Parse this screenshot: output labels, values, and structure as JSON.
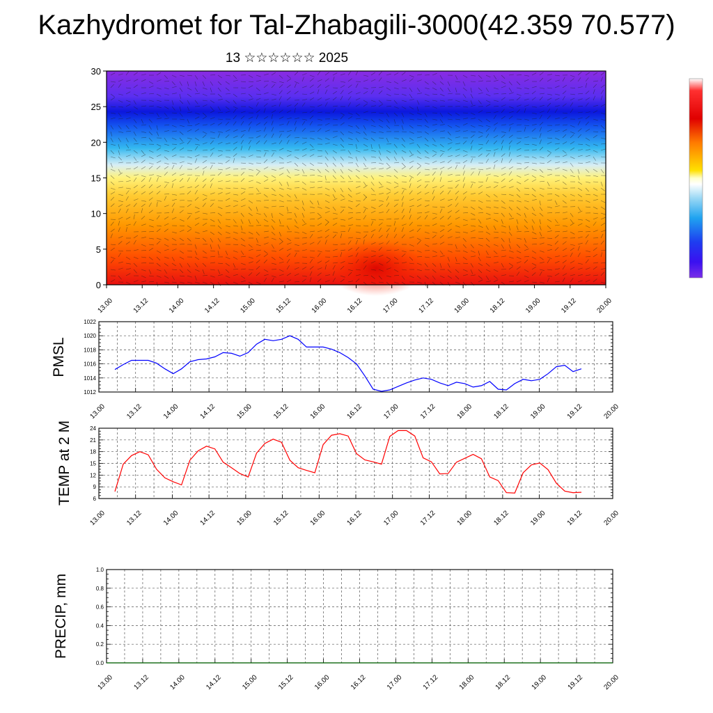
{
  "title": "Kazhydromet for Tal-Zhabagili-3000(42.359 70.577)",
  "subtitle": "13 ☆☆☆☆☆☆ 2025",
  "time_labels": [
    "13.00",
    "13.12",
    "14.00",
    "14.12",
    "15.00",
    "15.12",
    "16.00",
    "16.12",
    "17.00",
    "17.12",
    "18.00",
    "18.12",
    "19.00",
    "19.12",
    "20.00"
  ],
  "colors": {
    "pmsl_line": "#0000ff",
    "temp_line": "#ff0000",
    "precip_line": "#006400",
    "colorbar": [
      "#ffffff",
      "#ff0000",
      "#ff8c00",
      "#ffff00",
      "#ffffff",
      "#00bfff",
      "#0000ff",
      "#8a2be2"
    ]
  },
  "chart_data": [
    {
      "type": "heatmap",
      "title": "",
      "xlabel": "",
      "ylabel": "",
      "ylim": [
        0,
        30
      ],
      "yticks": [
        "0",
        "5",
        "10",
        "15",
        "20",
        "25",
        "30"
      ],
      "x": [
        "13.00",
        "13.12",
        "14.00",
        "14.12",
        "15.00",
        "15.12",
        "16.00",
        "16.12",
        "17.00",
        "17.12",
        "18.00",
        "18.12",
        "19.00",
        "19.12",
        "20.00"
      ],
      "color_scale": "warm at low levels (red/orange), yellow around 15, cyan-blue around 20-25, violet above",
      "overlay": "wind barbs",
      "colorbar": "right side, vertical"
    },
    {
      "type": "line",
      "name": "PMSL",
      "ylabel": "PMSL",
      "ylim": [
        1012,
        1022
      ],
      "yticks": [
        "1012",
        "1014",
        "1016",
        "1018",
        "1020",
        "1022"
      ],
      "grid": true,
      "values": [
        1015.2,
        1015.9,
        1016.5,
        1016.5,
        1016.5,
        1016.1,
        1015.3,
        1014.6,
        1015.3,
        1016.3,
        1016.6,
        1016.7,
        1017.0,
        1017.6,
        1017.5,
        1017.1,
        1017.6,
        1018.8,
        1019.5,
        1019.3,
        1019.5,
        1020.0,
        1019.5,
        1018.4,
        1018.4,
        1018.4,
        1018.1,
        1017.6,
        1016.9,
        1016.0,
        1014.3,
        1012.4,
        1012.1,
        1012.3,
        1012.8,
        1013.3,
        1013.7,
        1014.0,
        1013.8,
        1013.3,
        1012.9,
        1013.4,
        1013.2,
        1012.7,
        1012.9,
        1013.5,
        1012.4,
        1012.3,
        1013.2,
        1013.8,
        1013.6,
        1013.8,
        1014.6,
        1015.6,
        1015.8,
        1014.9,
        1015.3
      ]
    },
    {
      "type": "line",
      "name": "TEMP at 2 M",
      "ylabel": "TEMP at 2 M",
      "ylim": [
        6,
        24
      ],
      "yticks": [
        "6",
        "9",
        "12",
        "15",
        "18",
        "21",
        "24"
      ],
      "grid": true,
      "values": [
        7.8,
        14.8,
        17.0,
        18.0,
        17.2,
        13.5,
        11.3,
        10.3,
        9.5,
        15.8,
        18.2,
        19.4,
        18.7,
        15.3,
        13.9,
        12.4,
        11.5,
        17.6,
        20.1,
        21.2,
        20.4,
        15.8,
        13.9,
        13.2,
        12.6,
        19.8,
        22.2,
        22.6,
        22.0,
        17.5,
        15.9,
        15.4,
        14.8,
        21.9,
        23.4,
        23.4,
        22.0,
        16.4,
        15.4,
        12.3,
        12.4,
        15.3,
        16.3,
        17.3,
        16.2,
        11.5,
        10.6,
        7.5,
        7.4,
        12.6,
        14.6,
        15.1,
        13.4,
        9.9,
        7.9,
        7.5,
        7.6
      ]
    },
    {
      "type": "line",
      "name": "PRECIP, mm",
      "ylabel": "PRECIP, mm",
      "ylim": [
        0,
        1
      ],
      "yticks": [
        "0.0",
        "0.2",
        "0.4",
        "0.6",
        "0.8",
        "1.0"
      ],
      "grid": true,
      "values": [
        0,
        0,
        0,
        0,
        0,
        0,
        0,
        0,
        0,
        0,
        0,
        0,
        0,
        0,
        0,
        0,
        0,
        0,
        0,
        0,
        0,
        0,
        0,
        0,
        0,
        0,
        0,
        0,
        0,
        0,
        0,
        0,
        0,
        0,
        0,
        0,
        0,
        0,
        0,
        0,
        0,
        0,
        0,
        0,
        0,
        0,
        0,
        0,
        0,
        0,
        0,
        0,
        0,
        0,
        0,
        0,
        0
      ]
    }
  ]
}
